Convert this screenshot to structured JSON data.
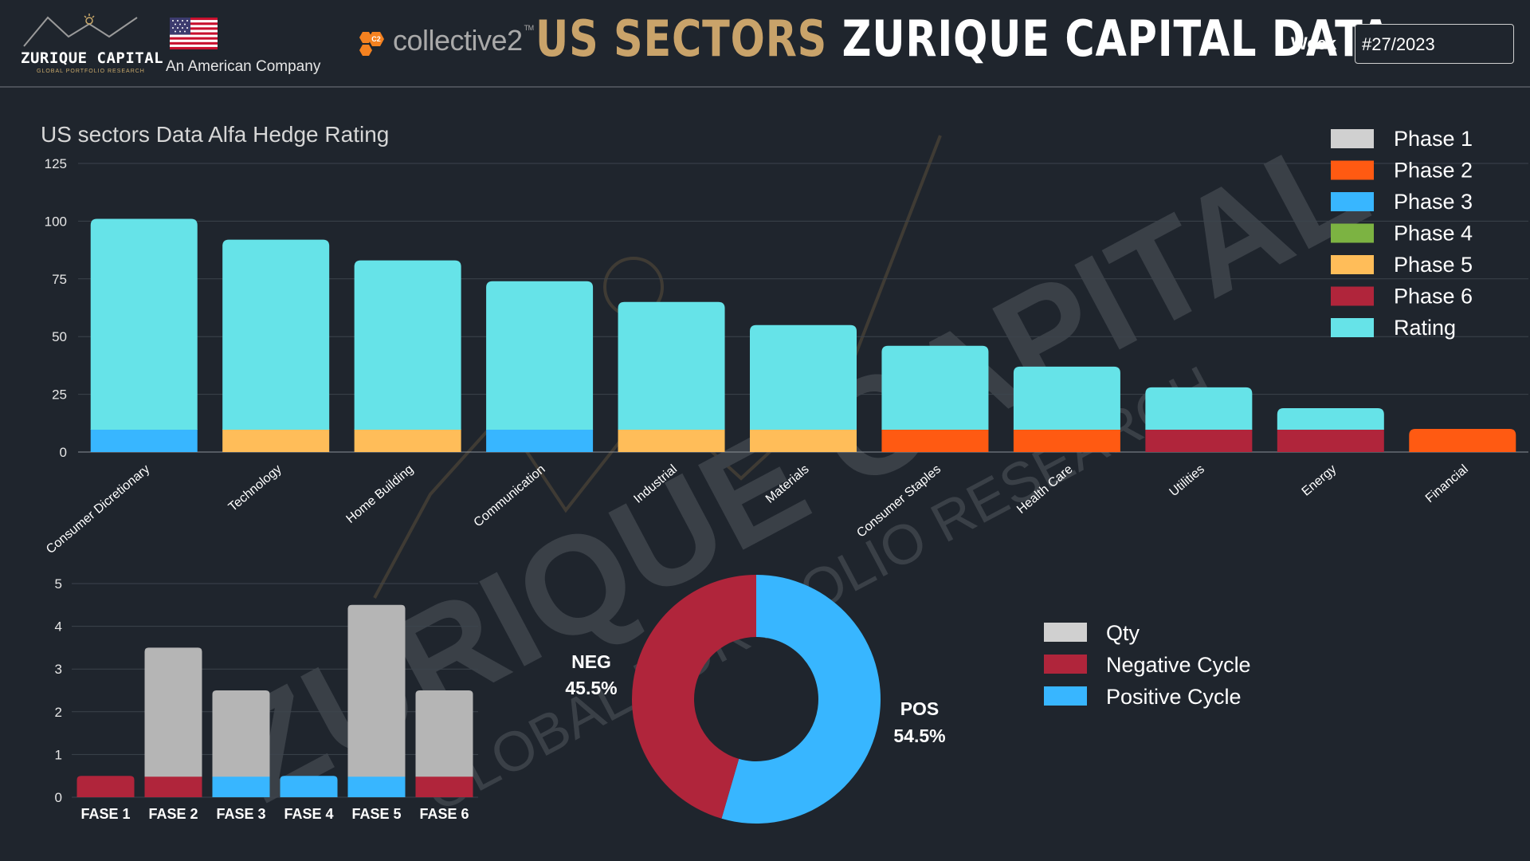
{
  "header": {
    "logo_name": "ZURIQUE CAPITAL",
    "logo_sub": "GLOBAL PORTFOLIO RESEARCH",
    "tagline": "An American Company",
    "partner": "collective2",
    "partner_mark": "C2",
    "partner_tm": "TM",
    "title_part1": "US SECTORS",
    "title_part2": "ZURIQUE CAPITAL DATA",
    "week_label": "Week",
    "week_value": "#27/2023"
  },
  "watermark": {
    "line1": "ZURIQUE CAPITAL",
    "line2": "GLOBAL PORTFOLIO RESEARCH"
  },
  "colors": {
    "phase1": "#d0d0d0",
    "phase2": "#ff5a12",
    "phase3": "#38b6ff",
    "phase4": "#7cb342",
    "phase5": "#ffbd59",
    "phase6": "#b0253b",
    "rating": "#66e3e8",
    "qty": "#b5b5b5",
    "negative": "#b0253b",
    "positive": "#38b6ff"
  },
  "chart_data": [
    {
      "type": "bar",
      "stacked": true,
      "title": "US sectors Data Alfa Hedge Rating",
      "categories": [
        "Consumer Dicretionary",
        "Technology",
        "Home Building",
        "Communication",
        "Industrial",
        "Materials",
        "Consumer Staples",
        "Health Care",
        "Utilities",
        "Energy",
        "Financial"
      ],
      "phase_value": 10,
      "phases": [
        3,
        5,
        5,
        3,
        5,
        5,
        2,
        2,
        6,
        6,
        2
      ],
      "rating": [
        91,
        82,
        73,
        64,
        55,
        45,
        36,
        27,
        18,
        9,
        0
      ],
      "totals": [
        101,
        92,
        83,
        74,
        65,
        55,
        46,
        37,
        28,
        19,
        10
      ],
      "yticks": [
        0,
        25,
        50,
        75,
        100,
        125
      ],
      "ylim": [
        0,
        125
      ],
      "legend": [
        "Phase 1",
        "Phase 2",
        "Phase 3",
        "Phase 4",
        "Phase 5",
        "Phase 6",
        "Rating"
      ],
      "legend_position": "top-right"
    },
    {
      "type": "bar",
      "stacked": true,
      "categories": [
        "FASE 1",
        "FASE 2",
        "FASE 3",
        "FASE 4",
        "FASE 5",
        "FASE 6"
      ],
      "series": [
        {
          "name": "Cycle",
          "values": [
            0.5,
            0.5,
            0.5,
            0.5,
            0.5,
            0.5
          ],
          "colors": [
            "negative",
            "negative",
            "positive",
            "positive",
            "positive",
            "negative"
          ]
        },
        {
          "name": "Qty",
          "values": [
            0,
            3,
            2,
            0,
            4,
            2
          ]
        }
      ],
      "yticks": [
        0,
        1,
        2,
        3,
        4,
        5
      ],
      "ylim": [
        0,
        5
      ]
    },
    {
      "type": "pie",
      "donut": true,
      "slices": [
        {
          "label": "NEG",
          "value": 45.5,
          "display": "45.5%"
        },
        {
          "label": "POS",
          "value": 54.5,
          "display": "54.5%"
        }
      ],
      "legend": [
        "Qty",
        "Negative Cycle",
        "Positive Cycle"
      ]
    }
  ]
}
